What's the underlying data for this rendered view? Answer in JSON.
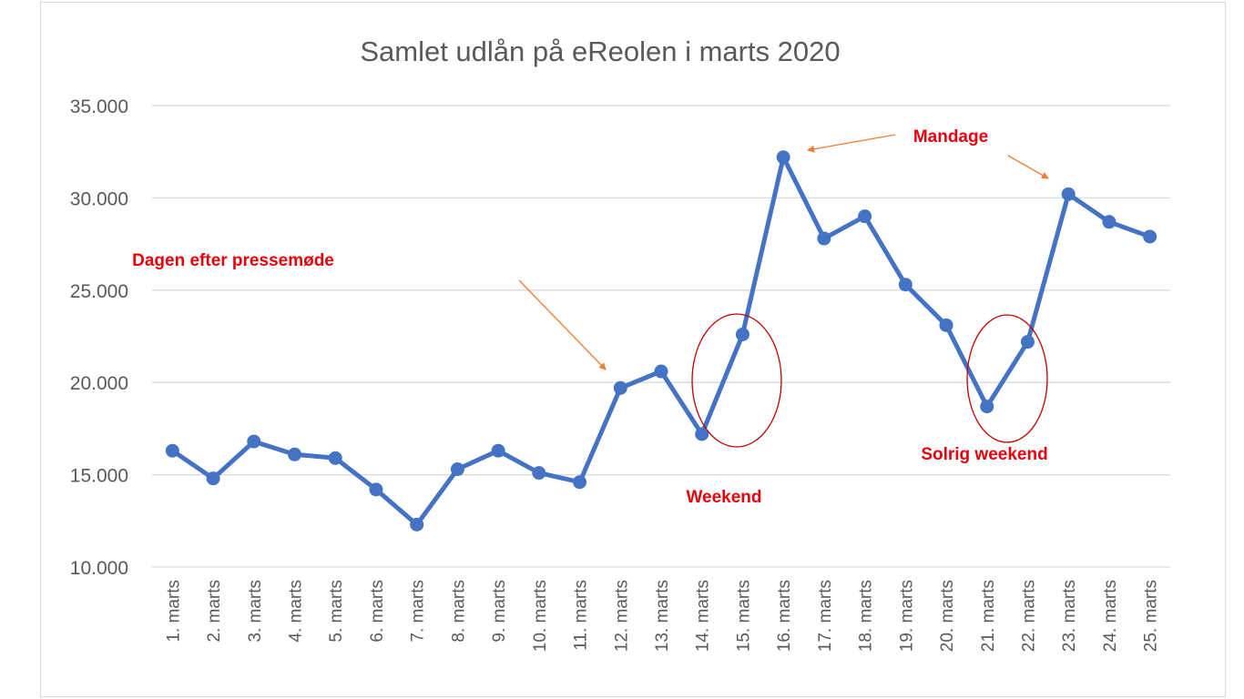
{
  "chart_data": {
    "type": "line",
    "title": "Samlet udlån på eReolen i marts 2020",
    "xlabel": "",
    "ylabel": "",
    "ylim": [
      10000,
      35000
    ],
    "yticks": [
      10000,
      15000,
      20000,
      25000,
      30000,
      35000
    ],
    "ytick_labels": [
      "10.000",
      "15.000",
      "20.000",
      "25.000",
      "30.000",
      "35.000"
    ],
    "grid": true,
    "categories": [
      "1. marts",
      "2. marts",
      "3. marts",
      "4. marts",
      "5. marts",
      "6. marts",
      "7. marts",
      "8. marts",
      "9. marts",
      "10. marts",
      "11. marts",
      "12. marts",
      "13. marts",
      "14. marts",
      "15. marts",
      "16. marts",
      "17. marts",
      "18. marts",
      "19. marts",
      "20. marts",
      "21. marts",
      "22. marts",
      "23. marts",
      "24. marts",
      "25. marts"
    ],
    "series": [
      {
        "name": "Samlet udlån",
        "color": "#4472c4",
        "values": [
          16300,
          14800,
          16800,
          16100,
          15900,
          14200,
          12300,
          15300,
          16300,
          15100,
          14600,
          19700,
          20600,
          17200,
          22600,
          32200,
          27800,
          29000,
          25300,
          23100,
          18700,
          22200,
          30200,
          28700,
          27900
        ]
      }
    ],
    "annotations": [
      {
        "label": "Dagen efter pressemøde",
        "target": "12. marts"
      },
      {
        "label": "Weekend",
        "target": "14. marts - 15. marts"
      },
      {
        "label": "Mandage",
        "target": "16. marts, 23. marts"
      },
      {
        "label": "Solrig weekend",
        "target": "21. marts - 22. marts"
      }
    ],
    "colors": {
      "line": "#4472c4",
      "grid": "#d9d9d9",
      "text": "#595959",
      "annotation_text": "#e8000b",
      "annotation_arrow": "#ed7d31",
      "highlight_circle": "#c00000"
    }
  }
}
